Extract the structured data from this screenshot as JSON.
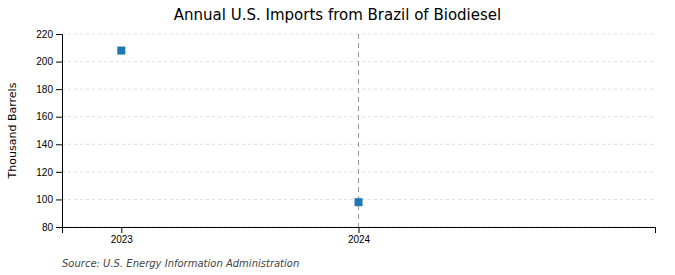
{
  "chart_data": {
    "type": "scatter",
    "title": "Annual U.S. Imports from Brazil of Biodiesel",
    "y_label": "Thousand Barrels",
    "source": "Source: U.S. Energy Information Administration",
    "x": [
      2023,
      2024
    ],
    "values": [
      208,
      98
    ],
    "marker": "square",
    "xlim": [
      2022.75,
      2025.25
    ],
    "xticks": [
      2023,
      2024
    ],
    "ylim": [
      80,
      220
    ],
    "yticks": [
      80,
      100,
      120,
      140,
      160,
      180,
      200,
      220
    ],
    "grid": true,
    "vline": 2024
  }
}
